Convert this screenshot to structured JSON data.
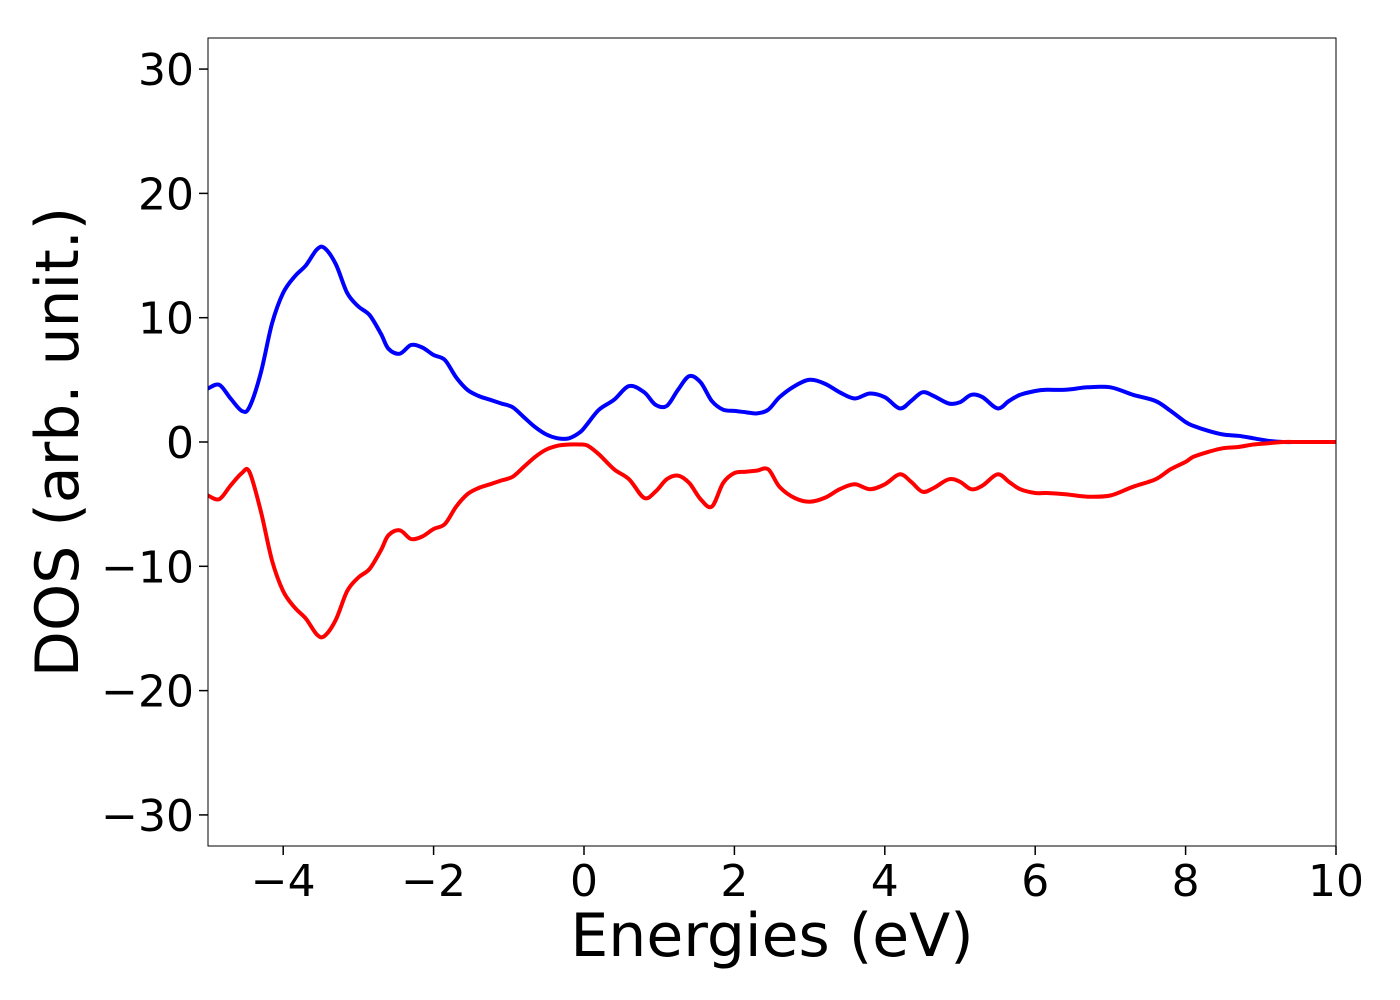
{
  "chart_data": {
    "type": "line",
    "title": "",
    "xlabel": "Energies (eV)",
    "ylabel": "DOS (arb. unit.)",
    "xlim": [
      -5,
      10
    ],
    "ylim": [
      -32.5,
      32.5
    ],
    "xticks": [
      -4,
      -2,
      0,
      2,
      4,
      6,
      8,
      10
    ],
    "xtick_labels": [
      "−4",
      "−2",
      "0",
      "2",
      "4",
      "6",
      "8",
      "10"
    ],
    "yticks": [
      -30,
      -20,
      -10,
      0,
      10,
      20,
      30
    ],
    "ytick_labels": [
      "−30",
      "−20",
      "−10",
      "0",
      "10",
      "20",
      "30"
    ],
    "grid": false,
    "legend": "none",
    "series": [
      {
        "color": "#0000ff",
        "x": [
          -5.0,
          -4.85,
          -4.7,
          -4.55,
          -4.45,
          -4.3,
          -4.15,
          -4.0,
          -3.85,
          -3.7,
          -3.55,
          -3.45,
          -3.3,
          -3.15,
          -3.0,
          -2.85,
          -2.7,
          -2.6,
          -2.45,
          -2.3,
          -2.15,
          -2.0,
          -1.85,
          -1.7,
          -1.55,
          -1.4,
          -1.25,
          -1.1,
          -0.95,
          -0.8,
          -0.65,
          -0.5,
          -0.35,
          -0.2,
          -0.05,
          0.05,
          0.2,
          0.4,
          0.6,
          0.8,
          0.95,
          1.1,
          1.25,
          1.4,
          1.55,
          1.7,
          1.85,
          2.0,
          2.15,
          2.3,
          2.45,
          2.6,
          2.8,
          3.0,
          3.2,
          3.4,
          3.6,
          3.8,
          4.0,
          4.2,
          4.35,
          4.5,
          4.65,
          4.85,
          5.0,
          5.15,
          5.3,
          5.5,
          5.65,
          5.8,
          6.0,
          6.15,
          6.4,
          6.7,
          7.0,
          7.3,
          7.6,
          7.8,
          8.0,
          8.1,
          8.3,
          8.5,
          8.7,
          8.9,
          9.1,
          9.3,
          9.5,
          9.7,
          10.0
        ],
        "y": [
          4.3,
          4.6,
          3.5,
          2.5,
          2.8,
          5.5,
          9.5,
          12.0,
          13.3,
          14.2,
          15.5,
          15.6,
          14.3,
          12.0,
          10.9,
          10.2,
          8.7,
          7.5,
          7.1,
          7.8,
          7.6,
          7.0,
          6.6,
          5.2,
          4.2,
          3.7,
          3.4,
          3.1,
          2.8,
          2.0,
          1.2,
          0.6,
          0.3,
          0.3,
          0.8,
          1.5,
          2.6,
          3.4,
          4.5,
          4.0,
          3.0,
          2.9,
          4.2,
          5.3,
          4.8,
          3.3,
          2.6,
          2.5,
          2.4,
          2.3,
          2.6,
          3.6,
          4.5,
          5.0,
          4.7,
          4.0,
          3.5,
          3.9,
          3.6,
          2.7,
          3.3,
          4.0,
          3.7,
          3.1,
          3.2,
          3.8,
          3.6,
          2.7,
          3.3,
          3.8,
          4.1,
          4.2,
          4.2,
          4.4,
          4.4,
          3.8,
          3.3,
          2.5,
          1.6,
          1.3,
          0.9,
          0.6,
          0.5,
          0.3,
          0.1,
          0.0,
          0.0,
          0.0,
          0.0
        ]
      },
      {
        "color": "#ff0000",
        "x": [
          -5.0,
          -4.85,
          -4.7,
          -4.55,
          -4.45,
          -4.3,
          -4.15,
          -4.0,
          -3.85,
          -3.7,
          -3.55,
          -3.45,
          -3.3,
          -3.15,
          -3.0,
          -2.85,
          -2.7,
          -2.6,
          -2.45,
          -2.3,
          -2.15,
          -2.0,
          -1.85,
          -1.7,
          -1.55,
          -1.4,
          -1.25,
          -1.1,
          -0.95,
          -0.8,
          -0.65,
          -0.5,
          -0.35,
          -0.2,
          -0.05,
          0.05,
          0.2,
          0.4,
          0.6,
          0.8,
          0.95,
          1.1,
          1.25,
          1.4,
          1.55,
          1.7,
          1.85,
          2.0,
          2.15,
          2.3,
          2.45,
          2.6,
          2.8,
          3.0,
          3.2,
          3.4,
          3.6,
          3.8,
          4.0,
          4.2,
          4.35,
          4.5,
          4.65,
          4.85,
          5.0,
          5.15,
          5.3,
          5.5,
          5.65,
          5.8,
          6.0,
          6.15,
          6.4,
          6.7,
          7.0,
          7.3,
          7.6,
          7.8,
          8.0,
          8.1,
          8.3,
          8.5,
          8.7,
          8.9,
          9.1,
          9.3,
          9.5,
          9.7,
          10.0
        ],
        "y": [
          -4.3,
          -4.6,
          -3.5,
          -2.5,
          -2.4,
          -5.5,
          -9.5,
          -12.0,
          -13.3,
          -14.2,
          -15.5,
          -15.6,
          -14.3,
          -12.0,
          -10.9,
          -10.2,
          -8.7,
          -7.5,
          -7.1,
          -7.8,
          -7.6,
          -7.0,
          -6.6,
          -5.2,
          -4.2,
          -3.7,
          -3.4,
          -3.1,
          -2.8,
          -2.0,
          -1.2,
          -0.6,
          -0.3,
          -0.2,
          -0.2,
          -0.3,
          -1.0,
          -2.2,
          -3.0,
          -4.5,
          -4.0,
          -3.0,
          -2.7,
          -3.3,
          -4.6,
          -5.2,
          -3.3,
          -2.5,
          -2.4,
          -2.3,
          -2.2,
          -3.6,
          -4.5,
          -4.8,
          -4.5,
          -3.8,
          -3.4,
          -3.8,
          -3.4,
          -2.6,
          -3.2,
          -4.0,
          -3.7,
          -3.0,
          -3.2,
          -3.8,
          -3.5,
          -2.6,
          -3.2,
          -3.8,
          -4.1,
          -4.1,
          -4.2,
          -4.4,
          -4.3,
          -3.6,
          -3.0,
          -2.2,
          -1.6,
          -1.2,
          -0.8,
          -0.5,
          -0.4,
          -0.2,
          -0.1,
          0.0,
          0.0,
          0.0,
          0.0
        ]
      }
    ]
  }
}
